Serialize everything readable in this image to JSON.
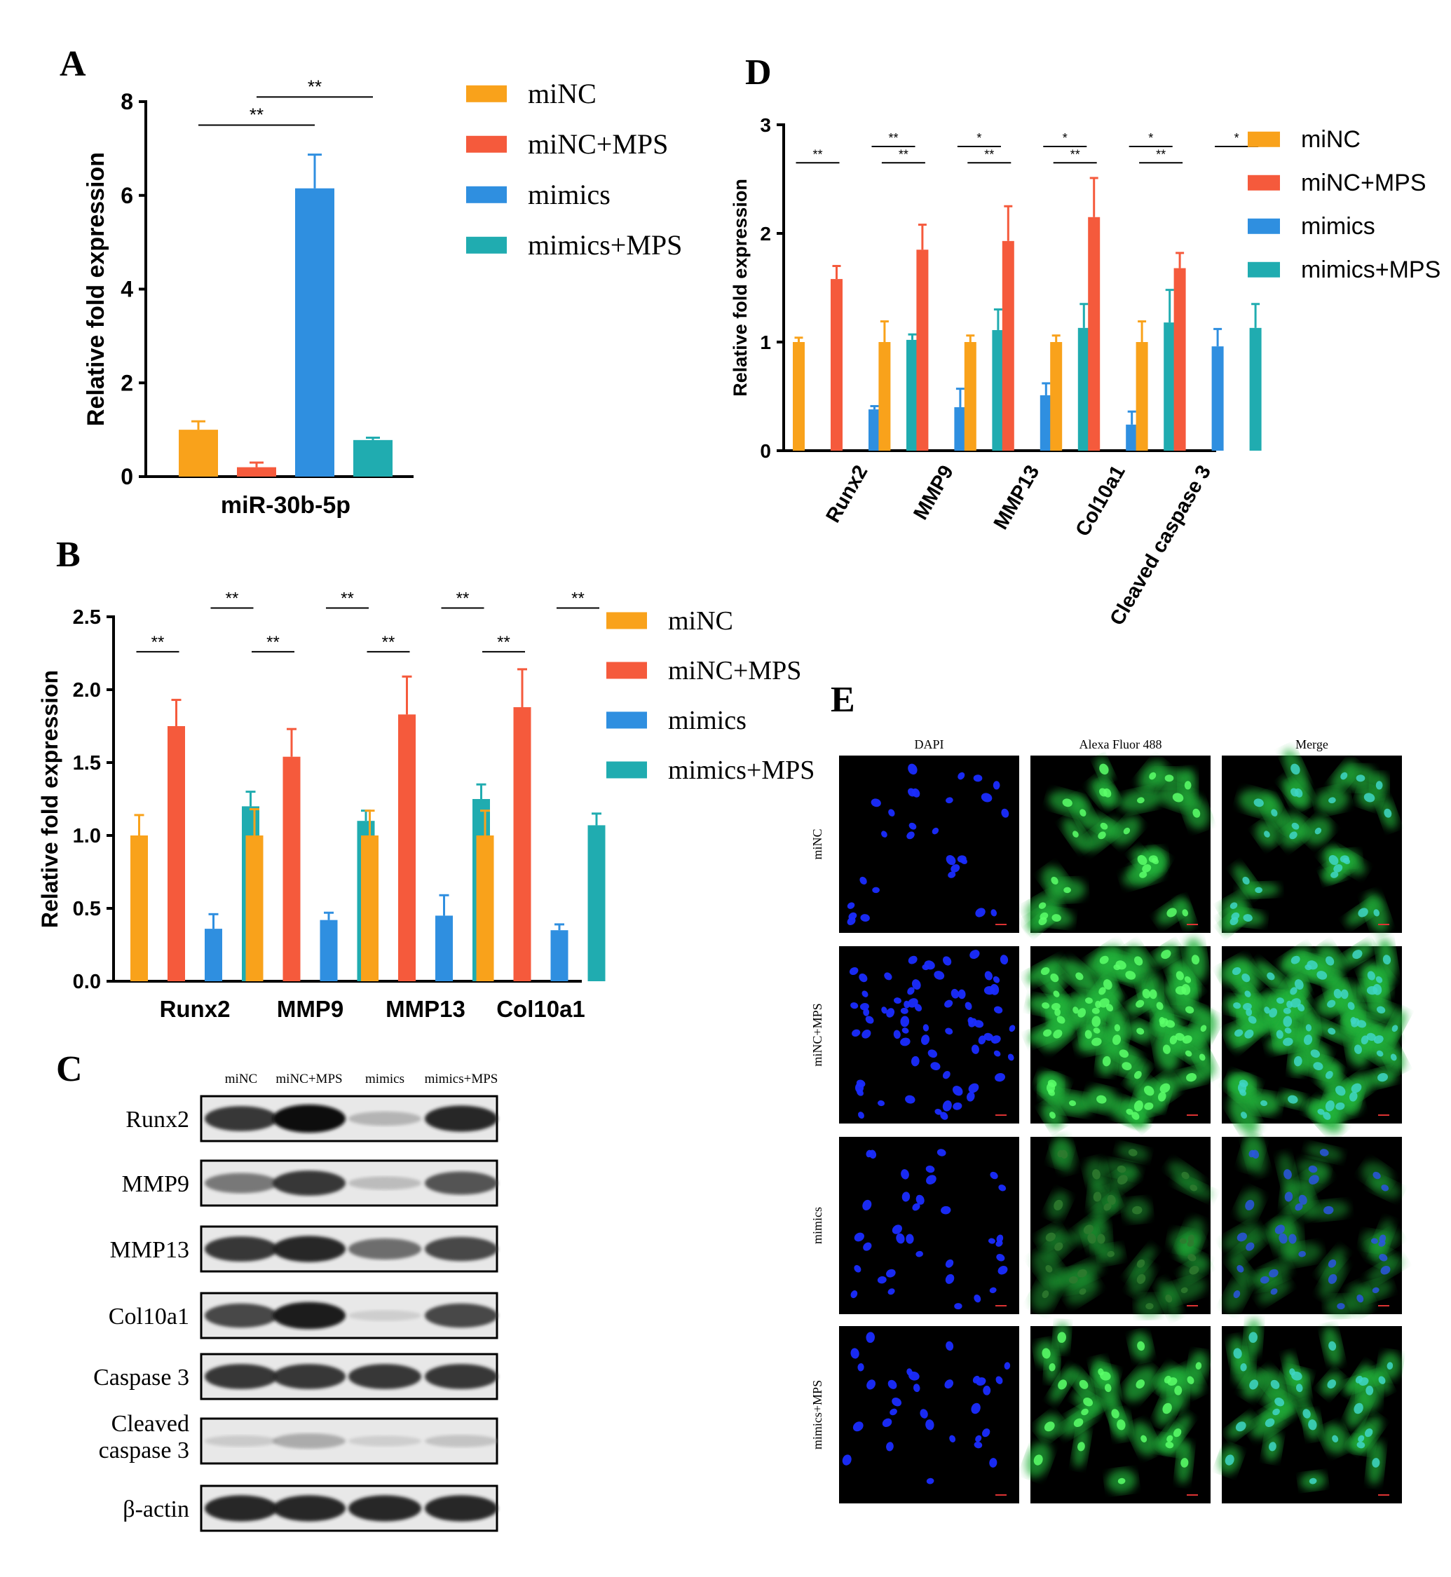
{
  "colors": {
    "miNC": "#F9A21B",
    "miNC_MPS": "#F55A3C",
    "mimics": "#2F8FE0",
    "mimics_MPS": "#20ACB0",
    "axis": "#000000"
  },
  "panels": {
    "A": "A",
    "B": "B",
    "C": "C",
    "D": "D",
    "E": "E"
  },
  "legend_labels": [
    "miNC",
    "miNC+MPS",
    "mimics",
    "mimics+MPS"
  ],
  "chart_data": [
    {
      "panel": "A",
      "type": "bar",
      "categories": [
        "miR-30b-5p"
      ],
      "series": [
        {
          "name": "miNC",
          "values": [
            1.0
          ],
          "errors": [
            0.18
          ]
        },
        {
          "name": "miNC+MPS",
          "values": [
            0.2
          ],
          "errors": [
            0.1
          ]
        },
        {
          "name": "mimics",
          "values": [
            6.15
          ],
          "errors": [
            0.72
          ]
        },
        {
          "name": "mimics+MPS",
          "values": [
            0.78
          ],
          "errors": [
            0.05
          ]
        }
      ],
      "ylabel": "Relative fold expression",
      "ylim": [
        0,
        8
      ],
      "yticks": [
        "0",
        "2",
        "4",
        "6",
        "8"
      ],
      "significance": [
        {
          "from_series": 0,
          "to_series": 2,
          "label": "**"
        },
        {
          "from_series": 1,
          "to_series": 3,
          "label": "**"
        }
      ]
    },
    {
      "panel": "B",
      "type": "bar",
      "categories": [
        "Runx2",
        "MMP9",
        "MMP13",
        "Col10a1"
      ],
      "series": [
        {
          "name": "miNC",
          "values": [
            1.0,
            1.0,
            1.0,
            1.0
          ],
          "errors": [
            0.14,
            0.18,
            0.17,
            0.17
          ]
        },
        {
          "name": "miNC+MPS",
          "values": [
            1.75,
            1.54,
            1.83,
            1.88
          ],
          "errors": [
            0.18,
            0.19,
            0.26,
            0.26
          ]
        },
        {
          "name": "mimics",
          "values": [
            0.36,
            0.42,
            0.45,
            0.35
          ],
          "errors": [
            0.1,
            0.05,
            0.14,
            0.04
          ]
        },
        {
          "name": "mimics+MPS",
          "values": [
            1.2,
            1.1,
            1.25,
            1.07
          ],
          "errors": [
            0.1,
            0.07,
            0.1,
            0.08
          ]
        }
      ],
      "ylabel": "Relative fold expression",
      "ylim": [
        0,
        2.5
      ],
      "yticks": [
        "0.0",
        "0.5",
        "1.0",
        "1.5",
        "2.0",
        "2.5"
      ],
      "significance": [
        {
          "from_series": 0,
          "to_series": 1,
          "label": "**"
        },
        {
          "from_series": 2,
          "to_series": 3,
          "label": "**"
        }
      ]
    },
    {
      "panel": "D",
      "type": "bar",
      "categories": [
        "Runx2",
        "MMP9",
        "MMP13",
        "Col10a1",
        "Cleaved caspase 3"
      ],
      "series": [
        {
          "name": "miNC",
          "values": [
            1.0,
            1.0,
            1.0,
            1.0,
            1.0
          ],
          "errors": [
            0.04,
            0.19,
            0.06,
            0.06,
            0.19
          ]
        },
        {
          "name": "miNC+MPS",
          "values": [
            1.58,
            1.85,
            1.93,
            2.15,
            1.68
          ],
          "errors": [
            0.12,
            0.23,
            0.32,
            0.36,
            0.14
          ]
        },
        {
          "name": "mimics",
          "values": [
            0.38,
            0.4,
            0.51,
            0.24,
            0.96
          ],
          "errors": [
            0.03,
            0.17,
            0.11,
            0.12,
            0.16
          ]
        },
        {
          "name": "mimics+MPS",
          "values": [
            1.02,
            1.11,
            1.13,
            1.18,
            1.13
          ],
          "errors": [
            0.05,
            0.19,
            0.22,
            0.3,
            0.22
          ]
        }
      ],
      "ylabel": "Relative fold expression",
      "ylim": [
        0,
        3
      ],
      "yticks": [
        "0",
        "1",
        "2",
        "3"
      ],
      "significance": [
        {
          "from_series": 0,
          "to_series": 1,
          "labels": [
            "**",
            "**",
            "**",
            "**",
            "**"
          ]
        },
        {
          "from_series": 2,
          "to_series": 3,
          "labels": [
            "**",
            "*",
            "*",
            "*",
            "*"
          ]
        }
      ]
    }
  ],
  "blot": {
    "lanes": [
      "miNC",
      "miNC+MPS",
      "mimics",
      "mimics+MPS"
    ],
    "rows": [
      {
        "label": "Runx2",
        "intensity": [
          0.85,
          1.0,
          0.3,
          0.9
        ]
      },
      {
        "label": "MMP9",
        "intensity": [
          0.6,
          0.85,
          0.25,
          0.75
        ]
      },
      {
        "label": "MMP13",
        "intensity": [
          0.85,
          0.9,
          0.65,
          0.8
        ]
      },
      {
        "label": "Col10a1",
        "intensity": [
          0.8,
          0.95,
          0.12,
          0.8
        ]
      },
      {
        "label": "Caspase 3",
        "intensity": [
          0.85,
          0.85,
          0.85,
          0.85
        ]
      },
      {
        "label": "Cleaved\ncaspase 3",
        "label_lines": [
          "Cleaved",
          "caspase 3"
        ],
        "intensity": [
          0.15,
          0.35,
          0.12,
          0.2
        ]
      },
      {
        "label": "β-actin",
        "intensity": [
          0.9,
          0.9,
          0.9,
          0.9
        ]
      }
    ]
  },
  "microscopy": {
    "columns": [
      "DAPI",
      "Alexa Fluor 488",
      "Merge"
    ],
    "rows": [
      "miNC",
      "miNC+MPS",
      "mimics",
      "mimics+MPS"
    ]
  }
}
